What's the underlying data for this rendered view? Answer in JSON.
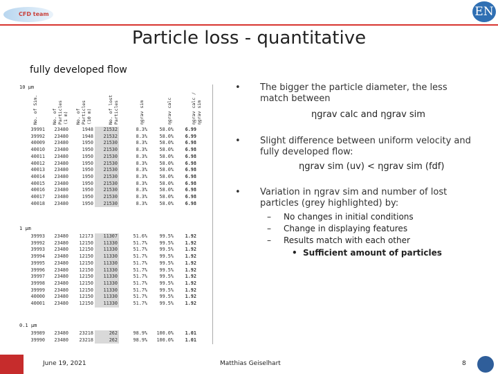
{
  "header": {
    "logo_text": "CFD team",
    "en_logo_text": "EN",
    "title": "Particle loss - quantitative",
    "subtitle": "fully developed flow"
  },
  "table": {
    "columns": [
      "No. of Sim.",
      "No. of\nParticles\n(1 m)",
      "No. of\nParticles\n(10 m)",
      "No. of lost\nParticles",
      "ηgrav sim",
      "ηgrav calc",
      "ηgrav calc /\nηgrav sim"
    ],
    "sections": [
      {
        "label": "10 μm",
        "rows": [
          [
            "39991",
            "23480",
            "1948",
            "21532",
            "8.3%",
            "58.0%",
            "6.99"
          ],
          [
            "39992",
            "23480",
            "1948",
            "21532",
            "8.3%",
            "58.0%",
            "6.99"
          ],
          [
            "40009",
            "23480",
            "1950",
            "21530",
            "8.3%",
            "58.0%",
            "6.98"
          ],
          [
            "40010",
            "23480",
            "1950",
            "21530",
            "8.3%",
            "58.0%",
            "6.98"
          ],
          [
            "40011",
            "23480",
            "1950",
            "21530",
            "8.3%",
            "58.0%",
            "6.98"
          ],
          [
            "40012",
            "23480",
            "1950",
            "21530",
            "8.3%",
            "58.0%",
            "6.98"
          ],
          [
            "40013",
            "23480",
            "1950",
            "21530",
            "8.3%",
            "58.0%",
            "6.98"
          ],
          [
            "40014",
            "23480",
            "1950",
            "21530",
            "8.3%",
            "58.0%",
            "6.98"
          ],
          [
            "40015",
            "23480",
            "1950",
            "21530",
            "8.3%",
            "58.0%",
            "6.98"
          ],
          [
            "40016",
            "23480",
            "1950",
            "21530",
            "8.3%",
            "58.0%",
            "6.98"
          ],
          [
            "40017",
            "23480",
            "1950",
            "21530",
            "8.3%",
            "58.0%",
            "6.98"
          ],
          [
            "40018",
            "23480",
            "1950",
            "21530",
            "8.3%",
            "58.0%",
            "6.98"
          ]
        ]
      },
      {
        "label": "1 μm",
        "rows": [
          [
            "39993",
            "23480",
            "12173",
            "11307",
            "51.6%",
            "99.5%",
            "1.92"
          ],
          [
            "39992",
            "23480",
            "12150",
            "11330",
            "51.7%",
            "99.5%",
            "1.92"
          ],
          [
            "39993",
            "23480",
            "12150",
            "11330",
            "51.7%",
            "99.5%",
            "1.92"
          ],
          [
            "39994",
            "23480",
            "12150",
            "11330",
            "51.7%",
            "99.5%",
            "1.92"
          ],
          [
            "39995",
            "23480",
            "12150",
            "11330",
            "51.7%",
            "99.5%",
            "1.92"
          ],
          [
            "39996",
            "23480",
            "12150",
            "11330",
            "51.7%",
            "99.5%",
            "1.92"
          ],
          [
            "39997",
            "23480",
            "12150",
            "11330",
            "51.7%",
            "99.5%",
            "1.92"
          ],
          [
            "39998",
            "23480",
            "12150",
            "11330",
            "51.7%",
            "99.5%",
            "1.92"
          ],
          [
            "39999",
            "23480",
            "12150",
            "11330",
            "51.7%",
            "99.5%",
            "1.92"
          ],
          [
            "40000",
            "23480",
            "12150",
            "11330",
            "51.7%",
            "99.5%",
            "1.92"
          ],
          [
            "40001",
            "23480",
            "12150",
            "11330",
            "51.7%",
            "99.5%",
            "1.92"
          ]
        ]
      },
      {
        "label": "0.1 μm",
        "rows": [
          [
            "39989",
            "23480",
            "23218",
            "262",
            "98.9%",
            "100.0%",
            "1.01"
          ],
          [
            "39990",
            "23480",
            "23218",
            "262",
            "98.9%",
            "100.0%",
            "1.01"
          ]
        ]
      }
    ]
  },
  "bullets": {
    "b1_text": "The bigger the particle diameter, the less match between",
    "b1_formula_a": "ηgrav calc",
    "b1_formula_and": "and",
    "b1_formula_b": "ηgrav sim",
    "b2_text": "Slight difference between uniform velocity and fully developed flow:",
    "b2_formula_a": "ηgrav sim (uv)",
    "b2_formula_lt": "<",
    "b2_formula_b": "ηgrav sim (fdf)",
    "b3_text_a": "Variation in",
    "b3_eta": "ηgrav sim",
    "b3_text_b": "and number of lost particles (grey highlighted) by:",
    "sub_items": [
      "No changes in initial conditions",
      "Change in displaying features",
      "Results match with each other"
    ],
    "subsub": "Sufficient amount of particles"
  },
  "footer": {
    "date": "June 19, 2021",
    "name": "Matthias Geiselhart",
    "page": "8"
  },
  "colors": {
    "accent_red": "#d8342f",
    "highlight_grey": "#d9d9d9"
  }
}
